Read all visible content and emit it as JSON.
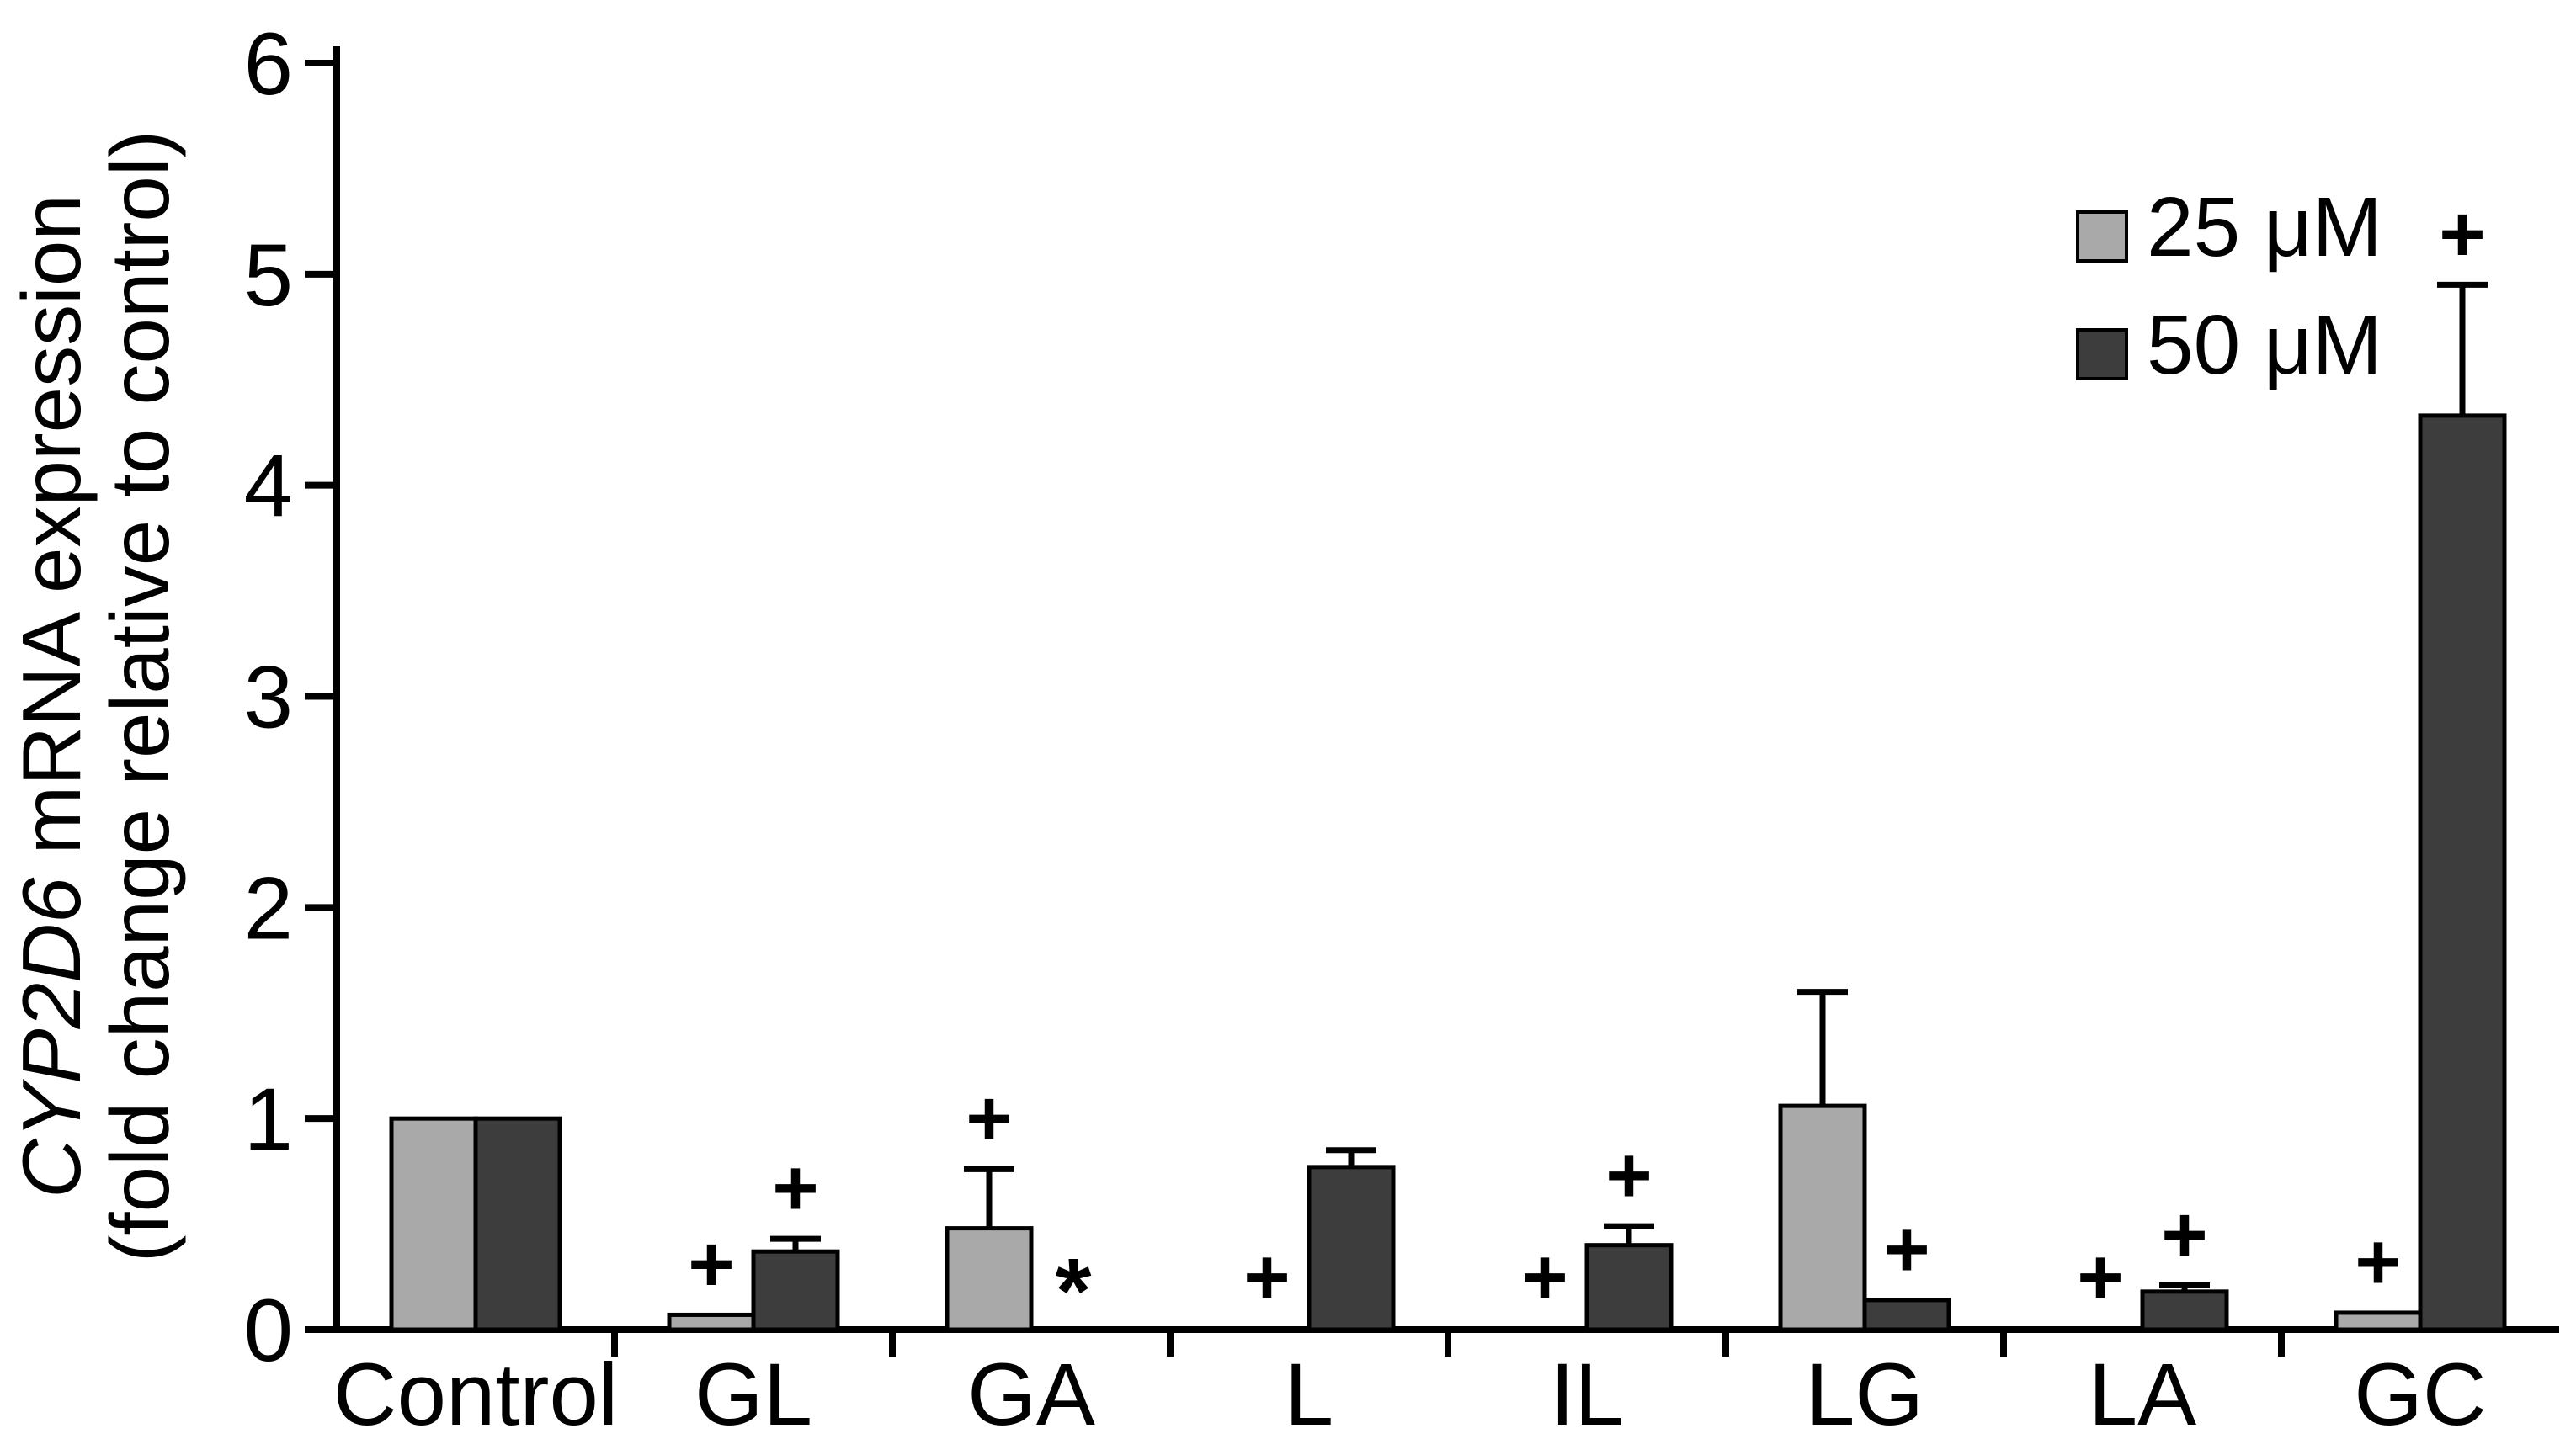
{
  "figure": {
    "background": "#ffffff"
  },
  "chart_data": {
    "type": "bar",
    "title": "",
    "ylabel_italic": "CYP2D6",
    "ylabel_rest": " mRNA expression",
    "ylabel_line2": "(fold change relative to control)",
    "xlabel": "",
    "categories": [
      "Control",
      "GL",
      "GA",
      "L",
      "IL",
      "LG",
      "LA",
      "GC"
    ],
    "ylim": [
      0,
      6
    ],
    "yticks": [
      0,
      1,
      2,
      3,
      4,
      5,
      6
    ],
    "grid": false,
    "legend_position": "top-right",
    "legend": [
      {
        "label": "25 μM",
        "color": "#a9a9a9"
      },
      {
        "label": "50 μM",
        "color": "#3d3d3d"
      }
    ],
    "series": [
      {
        "name": "25 μM",
        "color": "#a9a9a9",
        "values": [
          1.0,
          0.07,
          0.48,
          0,
          0,
          1.06,
          0,
          0.08
        ],
        "errors": [
          0,
          0,
          0.28,
          0,
          0,
          0.54,
          0,
          0
        ],
        "annotations": [
          "",
          "+",
          "+",
          "+",
          "+",
          "",
          "+",
          "+"
        ]
      },
      {
        "name": "50 μM",
        "color": "#3d3d3d",
        "values": [
          1.0,
          0.37,
          0,
          0.77,
          0.4,
          0.14,
          0.18,
          4.33
        ],
        "errors": [
          0,
          0.06,
          0,
          0.08,
          0.09,
          0,
          0.03,
          0.62
        ],
        "annotations": [
          "",
          "+",
          "*",
          "",
          "+",
          "+",
          "+",
          "+"
        ]
      }
    ]
  }
}
